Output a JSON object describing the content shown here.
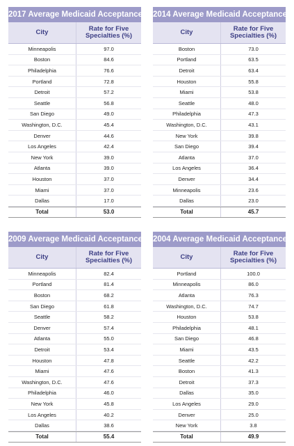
{
  "tables": [
    {
      "title": "2017 Average Medicaid Acceptance",
      "header": [
        "City",
        "Rate for Five Specialties (%)"
      ],
      "rows": [
        [
          "Minneapolis",
          "97.0"
        ],
        [
          "Boston",
          "84.6"
        ],
        [
          "Philadelphia",
          "76.6"
        ],
        [
          "Portland",
          "72.8"
        ],
        [
          "Detroit",
          "57.2"
        ],
        [
          "Seattle",
          "56.8"
        ],
        [
          "San Diego",
          "49.0"
        ],
        [
          "Washington, D.C.",
          "45.4"
        ],
        [
          "Denver",
          "44.6"
        ],
        [
          "Los Angeles",
          "42.4"
        ],
        [
          "New York",
          "39.0"
        ],
        [
          "Atlanta",
          "39.0"
        ],
        [
          "Houston",
          "37.0"
        ],
        [
          "Miami",
          "37.0"
        ],
        [
          "Dallas",
          "17.0"
        ]
      ],
      "total": [
        "Total",
        "53.0"
      ]
    },
    {
      "title": "2014 Average Medicaid Acceptance",
      "header": [
        "City",
        "Rate for Five Specialties (%)"
      ],
      "rows": [
        [
          "Boston",
          "73.0"
        ],
        [
          "Portland",
          "63.5"
        ],
        [
          "Detroit",
          "63.4"
        ],
        [
          "Houston",
          "55.8"
        ],
        [
          "Miami",
          "53.8"
        ],
        [
          "Seattle",
          "48.0"
        ],
        [
          "Philadelphia",
          "47.3"
        ],
        [
          "Washington, D.C.",
          "43.1"
        ],
        [
          "New York",
          "39.8"
        ],
        [
          "San Diego",
          "39.4"
        ],
        [
          "Atlanta",
          "37.0"
        ],
        [
          "Los Angeles",
          "36.4"
        ],
        [
          "Denver",
          "34.4"
        ],
        [
          "Minneapolis",
          "23.6"
        ],
        [
          "Dallas",
          "23.0"
        ]
      ],
      "total": [
        "Total",
        "45.7"
      ]
    },
    {
      "title": "2009 Average Medicaid Acceptance",
      "header": [
        "City",
        "Rate for Five Specialties (%)"
      ],
      "rows": [
        [
          "Minneapolis",
          "82.4"
        ],
        [
          "Portland",
          "81.4"
        ],
        [
          "Boston",
          "68.2"
        ],
        [
          "San Diego",
          "61.8"
        ],
        [
          "Seattle",
          "58.2"
        ],
        [
          "Denver",
          "57.4"
        ],
        [
          "Atlanta",
          "55.0"
        ],
        [
          "Detroit",
          "53.4"
        ],
        [
          "Houston",
          "47.8"
        ],
        [
          "Miami",
          "47.6"
        ],
        [
          "Washington, D.C.",
          "47.6"
        ],
        [
          "Philadelphia",
          "46.0"
        ],
        [
          "New York",
          "45.8"
        ],
        [
          "Los Angeles",
          "40.2"
        ],
        [
          "Dallas",
          "38.6"
        ]
      ],
      "total": [
        "Total",
        "55.4"
      ]
    },
    {
      "title": "2004 Average Medicaid Acceptance",
      "header": [
        "City",
        "Rate for Five Specialties (%)"
      ],
      "rows": [
        [
          "Portland",
          "100.0"
        ],
        [
          "Minneapolis",
          "86.0"
        ],
        [
          "Atlanta",
          "76.3"
        ],
        [
          "Washington, D.C.",
          "74.7"
        ],
        [
          "Houston",
          "53.8"
        ],
        [
          "Philadelphia",
          "48.1"
        ],
        [
          "San Diego",
          "46.8"
        ],
        [
          "Miami",
          "43.5"
        ],
        [
          "Seattle",
          "42.2"
        ],
        [
          "Boston",
          "41.3"
        ],
        [
          "Detroit",
          "37.3"
        ],
        [
          "Dallas",
          "35.0"
        ],
        [
          "Los Angeles",
          "29.0"
        ],
        [
          "Denver",
          "25.0"
        ],
        [
          "New York",
          "3.8"
        ]
      ],
      "total": [
        "Total",
        "49.9"
      ]
    }
  ]
}
